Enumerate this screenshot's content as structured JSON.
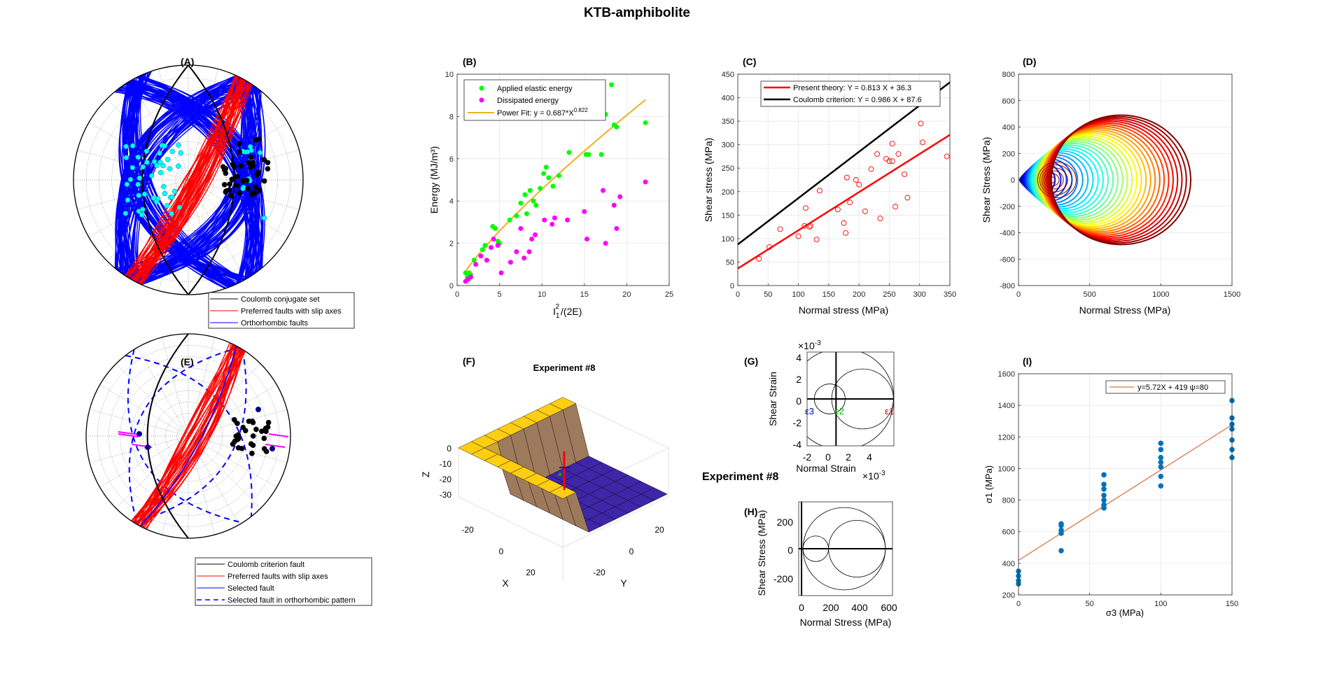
{
  "title": "KTB-amphibolite",
  "colors": {
    "red": "#ff0000",
    "blue": "#0000ff",
    "black": "#000000",
    "green": "#00ff00",
    "magenta": "#ff00ff",
    "orange": "#edb120",
    "cyan": "#00ffff",
    "matlab_blue": "#0072bd",
    "fit_orange": "#d95319"
  },
  "panels": {
    "A": {
      "label": "(A)",
      "legend": [
        "Coulomb conjugate set",
        "Preferred faults with slip axes",
        "Orthorhombic faults"
      ]
    },
    "E": {
      "label": "(E)",
      "legend": [
        "Coulomb criterion fault",
        "Preferred faults with slip axes",
        "Selected fault",
        "Selected fault in orthorhombic pattern"
      ]
    },
    "F": {
      "label": "(F)",
      "title": "Experiment #8",
      "zlabel": "Z",
      "xlabel": "X",
      "ylabel": "Y",
      "zticks": [
        "0",
        "-10",
        "-20",
        "-30"
      ],
      "xticks": [
        "-20",
        "0",
        "20"
      ],
      "yticks": [
        "-20",
        "0",
        "20"
      ]
    },
    "G": {
      "label": "(G)",
      "ylabel": "Shear Strain",
      "xlabel": "Normal Strain",
      "exp_y": "×10",
      "exp_x": "×10",
      "exp_pow": "-3",
      "yticks": [
        "4",
        "2",
        "0",
        "-2",
        "-4"
      ],
      "xticks": [
        "-2",
        "0",
        "2",
        "4"
      ],
      "eps_labels": [
        "ε3",
        "ε2",
        "ε1"
      ]
    },
    "H": {
      "label": "(H)",
      "overlay_title": "Experiment #8",
      "ylabel": "Shear Stress (MPa)",
      "xlabel": "Normal Stress (MPa)",
      "yticks": [
        "200",
        "0",
        "-200"
      ],
      "xticks": [
        "0",
        "200",
        "400",
        "600"
      ]
    },
    "D": {
      "label": "(D)",
      "ylabel": "Shear Stress (MPa)",
      "xlabel": "Normal Stress (MPa)"
    }
  },
  "chart_data": [
    {
      "panel": "B",
      "label": "(B)",
      "type": "scatter",
      "xlabel": "I1²/(2E)",
      "xlabel_main": "I",
      "xlabel_sub": "1",
      "xlabel_sup": "2",
      "xlabel_rest": "/(2E)",
      "ylabel": "Energy (MJ/m³)",
      "xlim": [
        0,
        25
      ],
      "ylim": [
        0,
        10
      ],
      "xticks": [
        0,
        5,
        10,
        15,
        20,
        25
      ],
      "yticks": [
        0,
        2,
        4,
        6,
        8,
        10
      ],
      "grid": true,
      "legend_position": "top-left",
      "legend": [
        "Applied elastic energy",
        "Dissipated energy",
        "Power Fit: y = 0.687*X"
      ],
      "fit_exponent_label": "0.822",
      "series": [
        {
          "name": "Applied elastic energy",
          "x": [
            1.0,
            1.2,
            1.4,
            1.6,
            2.0,
            3.0,
            3.3,
            4.2,
            4.5,
            4.8,
            5.0,
            6.2,
            7.0,
            7.5,
            8.0,
            8.2,
            8.6,
            9.0,
            9.3,
            9.8,
            10.2,
            10.5,
            10.8,
            11.3,
            12.0,
            13.2,
            15.2,
            15.5,
            17.0,
            17.5,
            18.2,
            18.5,
            18.8,
            22.2
          ],
          "y": [
            0.6,
            0.4,
            0.6,
            0.5,
            1.2,
            1.7,
            1.9,
            2.8,
            2.7,
            2.1,
            2.0,
            3.1,
            3.3,
            3.9,
            4.3,
            3.4,
            4.5,
            4.0,
            3.8,
            4.6,
            5.3,
            5.6,
            5.1,
            4.7,
            5.2,
            6.3,
            6.2,
            6.2,
            6.2,
            8.1,
            9.5,
            7.6,
            7.5,
            7.7
          ]
        },
        {
          "name": "Dissipated energy",
          "x": [
            1.0,
            1.3,
            1.6,
            2.2,
            2.8,
            3.5,
            4.0,
            4.3,
            4.8,
            5.2,
            6.3,
            7.0,
            7.5,
            7.9,
            8.5,
            8.8,
            9.2,
            10.3,
            11.2,
            11.5,
            13.0,
            15.0,
            15.3,
            17.2,
            17.5,
            18.5,
            18.8,
            19.2,
            22.2
          ],
          "y": [
            0.2,
            0.3,
            0.4,
            1.0,
            1.4,
            1.2,
            1.8,
            2.2,
            1.9,
            0.6,
            1.1,
            1.6,
            2.7,
            1.3,
            1.6,
            2.2,
            2.4,
            3.1,
            2.9,
            3.2,
            3.1,
            3.5,
            2.2,
            4.5,
            2.0,
            3.8,
            2.7,
            4.2,
            4.9
          ]
        },
        {
          "name": "Power Fit",
          "formula": "y = 0.687*X^0.822",
          "coef": 0.687,
          "exponent": 0.822,
          "x_range": [
            1,
            22.2
          ]
        }
      ]
    },
    {
      "panel": "C",
      "label": "(C)",
      "type": "scatter",
      "xlabel": "Normal stress (MPa)",
      "ylabel": "Shear stress (MPa)",
      "xlim": [
        0,
        350
      ],
      "ylim": [
        0,
        450
      ],
      "xticks": [
        0,
        50,
        100,
        150,
        200,
        250,
        300,
        350
      ],
      "yticks": [
        0,
        50,
        100,
        150,
        200,
        250,
        300,
        350,
        400,
        450
      ],
      "grid": true,
      "legend_position": "top",
      "legend": [
        "Present theory: Y = 0.813 X + 36.3",
        "Coulomb criterion: Y = 0.986  X + 87.6"
      ],
      "series": [
        {
          "name": "data",
          "x": [
            35,
            52,
            70,
            100,
            110,
            112,
            118,
            120,
            130,
            135,
            165,
            175,
            178,
            180,
            185,
            195,
            200,
            210,
            220,
            230,
            235,
            245,
            250,
            255,
            255,
            260,
            265,
            275,
            280,
            302,
            305,
            345
          ],
          "y": [
            57,
            82,
            120,
            105,
            127,
            165,
            125,
            127,
            98,
            202,
            162,
            133,
            112,
            230,
            177,
            225,
            215,
            158,
            248,
            280,
            143,
            270,
            265,
            302,
            265,
            168,
            280,
            237,
            187,
            345,
            305,
            275
          ]
        },
        {
          "name": "Present theory: Y = 0.813 X + 36.3",
          "slope": 0.813,
          "intercept": 36.3
        },
        {
          "name": "Coulomb criterion: Y = 0.986  X + 87.6",
          "slope": 0.986,
          "intercept": 87.6
        }
      ]
    },
    {
      "panel": "D",
      "label": "(D)",
      "type": "line",
      "xlabel": "Normal Stress (MPa)",
      "ylabel": "Shear Stress (MPa)",
      "xlim": [
        0,
        1500
      ],
      "ylim": [
        -800,
        800
      ],
      "xticks": [
        0,
        500,
        1000,
        1500
      ],
      "yticks": [
        -800,
        -600,
        -400,
        -200,
        0,
        200,
        400,
        600,
        800
      ],
      "grid": true,
      "circle_count": 33
    },
    {
      "panel": "I",
      "label": "(I)",
      "type": "scatter",
      "xlabel": "σ3 (MPa)",
      "ylabel": "σ1 (MPa)",
      "xlim": [
        0,
        150
      ],
      "ylim": [
        200,
        1600
      ],
      "xticks": [
        0,
        50,
        100,
        150
      ],
      "yticks": [
        200,
        400,
        600,
        800,
        1000,
        1200,
        1400,
        1600
      ],
      "grid": true,
      "legend_position": "top-right",
      "legend": [
        "y=5.72X + 419   ψ=80"
      ],
      "series": [
        {
          "name": "data",
          "x": [
            0,
            0,
            0,
            0,
            30,
            30,
            30,
            30,
            30,
            60,
            60,
            60,
            60,
            60,
            60,
            60,
            100,
            100,
            100,
            100,
            100,
            100,
            100,
            150,
            150,
            150,
            150,
            150,
            150,
            150
          ],
          "y": [
            270,
            290,
            320,
            350,
            480,
            590,
            610,
            640,
            650,
            750,
            770,
            800,
            830,
            870,
            900,
            960,
            890,
            950,
            1010,
            1040,
            1070,
            1120,
            1160,
            1070,
            1120,
            1180,
            1250,
            1280,
            1320,
            1430
          ]
        },
        {
          "name": "y=5.72X + 419",
          "slope": 5.72,
          "intercept": 419
        }
      ]
    }
  ]
}
